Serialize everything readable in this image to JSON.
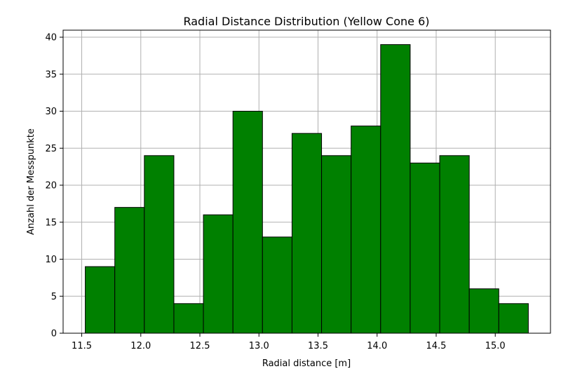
{
  "chart_data": {
    "type": "histogram",
    "title": "Radial Distance Distribution (Yellow Cone 6)",
    "xlabel": "Radial distance [m]",
    "ylabel": "Anzahl der Messpunkte",
    "bins": [
      11.53,
      11.78,
      12.03,
      12.28,
      12.53,
      12.78,
      13.03,
      13.28,
      13.53,
      13.78,
      14.03,
      14.28,
      14.53,
      14.78,
      15.03,
      15.28
    ],
    "values": [
      9,
      17,
      24,
      4,
      16,
      30,
      13,
      27,
      24,
      28,
      39,
      23,
      24,
      6,
      4
    ],
    "color": "#008000",
    "edgecolor": "#000000",
    "xlim": [
      11.3425,
      15.4675
    ],
    "xticks": [
      11.5,
      {
        "value": 12,
        "label": "12.0"
      },
      12.5,
      {
        "value": 13,
        "label": "13.0"
      },
      13.5,
      {
        "value": 14,
        "label": "14.0"
      },
      14.5,
      {
        "value": 15,
        "label": "15.0"
      }
    ],
    "ylim": [
      0,
      40.95
    ],
    "yticks": [
      0,
      5,
      10,
      15,
      20,
      25,
      30,
      35,
      40
    ],
    "grid": true
  }
}
